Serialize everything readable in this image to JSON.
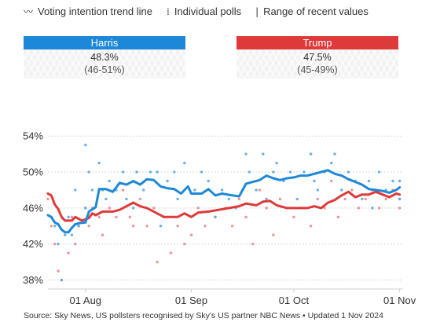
{
  "legend": {
    "trend": "Voting intention trend line",
    "polls": "Individual polls",
    "range": "Range of recent values",
    "trend_icon": "wavy-line-icon",
    "polls_icon": "dots-icon",
    "range_icon": "bar-icon"
  },
  "candidates": [
    {
      "name": "Harris",
      "pct": "48.3%",
      "range": "(46-51%)",
      "color": "#1e88d8"
    },
    {
      "name": "Trump",
      "pct": "47.5%",
      "range": "(45-49%)",
      "color": "#de3a3a"
    }
  ],
  "source": "Source: Sky News, US pollsters recognised by Sky's US partner NBC News • Updated 1 Nov 2024",
  "chart_data": {
    "type": "line",
    "x_start": "2024-07-21",
    "x_end": "2024-11-02",
    "x_ticks": [
      {
        "label": "01 Aug",
        "date": "2024-08-01"
      },
      {
        "label": "01 Sep",
        "date": "2024-09-01"
      },
      {
        "label": "01 Oct",
        "date": "2024-10-01"
      },
      {
        "label": "01 Nov",
        "date": "2024-11-01"
      }
    ],
    "y_ticks": [
      "54%",
      "50%",
      "46%",
      "42%",
      "38%"
    ],
    "y_tick_values": [
      54,
      50,
      46,
      42,
      38
    ],
    "ylim": [
      37,
      55.5
    ],
    "series": [
      {
        "name": "Harris",
        "color": "#1e88d8",
        "points": [
          [
            "2024-07-21",
            45.2
          ],
          [
            "2024-07-22",
            45.0
          ],
          [
            "2024-07-23",
            44.4
          ],
          [
            "2024-07-24",
            44.2
          ],
          [
            "2024-07-25",
            43.6
          ],
          [
            "2024-07-26",
            43.3
          ],
          [
            "2024-07-27",
            43.3
          ],
          [
            "2024-07-28",
            43.8
          ],
          [
            "2024-07-29",
            44.2
          ],
          [
            "2024-07-30",
            44.3
          ],
          [
            "2024-08-01",
            44.4
          ],
          [
            "2024-08-02",
            45.6
          ],
          [
            "2024-08-04",
            46.1
          ],
          [
            "2024-08-05",
            48.1
          ],
          [
            "2024-08-07",
            48.1
          ],
          [
            "2024-08-09",
            47.8
          ],
          [
            "2024-08-11",
            48.8
          ],
          [
            "2024-08-13",
            48.6
          ],
          [
            "2024-08-15",
            49.0
          ],
          [
            "2024-08-17",
            48.6
          ],
          [
            "2024-08-19",
            49.2
          ],
          [
            "2024-08-21",
            49.1
          ],
          [
            "2024-08-23",
            48.4
          ],
          [
            "2024-08-25",
            48.2
          ],
          [
            "2024-08-27",
            48.1
          ],
          [
            "2024-08-29",
            47.6
          ],
          [
            "2024-08-31",
            48.4
          ],
          [
            "2024-09-01",
            47.6
          ],
          [
            "2024-09-04",
            47.6
          ],
          [
            "2024-09-06",
            48.1
          ],
          [
            "2024-09-08",
            47.4
          ],
          [
            "2024-09-10",
            47.6
          ],
          [
            "2024-09-13",
            47.4
          ],
          [
            "2024-09-15",
            47.3
          ],
          [
            "2024-09-17",
            48.7
          ],
          [
            "2024-09-19",
            48.9
          ],
          [
            "2024-09-21",
            49.1
          ],
          [
            "2024-09-23",
            49.6
          ],
          [
            "2024-09-25",
            49.3
          ],
          [
            "2024-09-27",
            49.1
          ],
          [
            "2024-09-29",
            49.3
          ],
          [
            "2024-10-01",
            49.4
          ],
          [
            "2024-10-03",
            49.6
          ],
          [
            "2024-10-05",
            49.6
          ],
          [
            "2024-10-07",
            49.8
          ],
          [
            "2024-10-09",
            50.0
          ],
          [
            "2024-10-11",
            50.2
          ],
          [
            "2024-10-13",
            49.8
          ],
          [
            "2024-10-15",
            49.6
          ],
          [
            "2024-10-17",
            49.2
          ],
          [
            "2024-10-19",
            48.9
          ],
          [
            "2024-10-21",
            48.6
          ],
          [
            "2024-10-23",
            48.1
          ],
          [
            "2024-10-25",
            48.0
          ],
          [
            "2024-10-27",
            47.9
          ],
          [
            "2024-10-29",
            47.7
          ],
          [
            "2024-10-31",
            48.0
          ],
          [
            "2024-11-01",
            48.3
          ]
        ]
      },
      {
        "name": "Trump",
        "color": "#de3a3a",
        "points": [
          [
            "2024-07-21",
            47.6
          ],
          [
            "2024-07-22",
            47.4
          ],
          [
            "2024-07-23",
            46.4
          ],
          [
            "2024-07-24",
            45.9
          ],
          [
            "2024-07-25",
            45.0
          ],
          [
            "2024-07-26",
            44.6
          ],
          [
            "2024-07-28",
            44.6
          ],
          [
            "2024-07-29",
            45.0
          ],
          [
            "2024-07-31",
            44.6
          ],
          [
            "2024-08-02",
            44.9
          ],
          [
            "2024-08-03",
            45.4
          ],
          [
            "2024-08-04",
            45.2
          ],
          [
            "2024-08-06",
            45.6
          ],
          [
            "2024-08-09",
            45.6
          ],
          [
            "2024-08-11",
            45.8
          ],
          [
            "2024-08-13",
            46.2
          ],
          [
            "2024-08-15",
            46.6
          ],
          [
            "2024-08-17",
            46.2
          ],
          [
            "2024-08-19",
            46.0
          ],
          [
            "2024-08-21",
            45.6
          ],
          [
            "2024-08-24",
            45.0
          ],
          [
            "2024-08-28",
            45.0
          ],
          [
            "2024-08-30",
            45.4
          ],
          [
            "2024-09-01",
            45.0
          ],
          [
            "2024-09-03",
            45.5
          ],
          [
            "2024-09-06",
            45.6
          ],
          [
            "2024-09-09",
            45.8
          ],
          [
            "2024-09-12",
            46.0
          ],
          [
            "2024-09-15",
            46.2
          ],
          [
            "2024-09-17",
            46.5
          ],
          [
            "2024-09-20",
            46.3
          ],
          [
            "2024-09-22",
            46.7
          ],
          [
            "2024-09-24",
            46.8
          ],
          [
            "2024-09-26",
            46.3
          ],
          [
            "2024-09-29",
            46.0
          ],
          [
            "2024-10-02",
            46.0
          ],
          [
            "2024-10-05",
            46.0
          ],
          [
            "2024-10-07",
            46.2
          ],
          [
            "2024-10-09",
            46.0
          ],
          [
            "2024-10-11",
            46.6
          ],
          [
            "2024-10-13",
            46.9
          ],
          [
            "2024-10-15",
            47.4
          ],
          [
            "2024-10-17",
            47.8
          ],
          [
            "2024-10-19",
            47.2
          ],
          [
            "2024-10-21",
            47.5
          ],
          [
            "2024-10-23",
            47.5
          ],
          [
            "2024-10-25",
            47.8
          ],
          [
            "2024-10-27",
            47.5
          ],
          [
            "2024-10-29",
            47.2
          ],
          [
            "2024-10-31",
            47.6
          ],
          [
            "2024-11-01",
            47.5
          ]
        ]
      }
    ],
    "polls": [
      {
        "series": "Harris",
        "color": "#5aa7e6",
        "points": [
          [
            "2024-07-22",
            45.0
          ],
          [
            "2024-07-23",
            44.0
          ],
          [
            "2024-07-24",
            42.0
          ],
          [
            "2024-07-25",
            38.0
          ],
          [
            "2024-07-26",
            43.0
          ],
          [
            "2024-07-27",
            45.0
          ],
          [
            "2024-07-28",
            43.0
          ],
          [
            "2024-07-29",
            48.0
          ],
          [
            "2024-07-30",
            44.0
          ],
          [
            "2024-08-01",
            53.0
          ],
          [
            "2024-08-01",
            46.0
          ],
          [
            "2024-08-02",
            50.0
          ],
          [
            "2024-08-03",
            48.0
          ],
          [
            "2024-08-05",
            51.0
          ],
          [
            "2024-08-06",
            48.0
          ],
          [
            "2024-08-07",
            47.0
          ],
          [
            "2024-08-08",
            49.0
          ],
          [
            "2024-08-10",
            48.0
          ],
          [
            "2024-08-12",
            50.0
          ],
          [
            "2024-08-13",
            47.0
          ],
          [
            "2024-08-15",
            46.0
          ],
          [
            "2024-08-16",
            50.0
          ],
          [
            "2024-08-18",
            48.0
          ],
          [
            "2024-08-20",
            50.0
          ],
          [
            "2024-08-22",
            50.0
          ],
          [
            "2024-08-23",
            44.0
          ],
          [
            "2024-08-25",
            49.0
          ],
          [
            "2024-08-27",
            50.0
          ],
          [
            "2024-08-28",
            47.0
          ],
          [
            "2024-08-30",
            51.0
          ],
          [
            "2024-09-02",
            48.0
          ],
          [
            "2024-09-04",
            50.0
          ],
          [
            "2024-09-06",
            49.0
          ],
          [
            "2024-09-08",
            45.0
          ],
          [
            "2024-09-10",
            48.0
          ],
          [
            "2024-09-12",
            47.0
          ],
          [
            "2024-09-14",
            46.0
          ],
          [
            "2024-09-16",
            48.0
          ],
          [
            "2024-09-17",
            52.0
          ],
          [
            "2024-09-18",
            50.0
          ],
          [
            "2024-09-20",
            48.0
          ],
          [
            "2024-09-22",
            52.0
          ],
          [
            "2024-09-23",
            47.0
          ],
          [
            "2024-09-25",
            50.0
          ],
          [
            "2024-09-26",
            51.0
          ],
          [
            "2024-09-28",
            49.0
          ],
          [
            "2024-09-30",
            50.0
          ],
          [
            "2024-10-02",
            47.0
          ],
          [
            "2024-10-04",
            50.0
          ],
          [
            "2024-10-06",
            52.0
          ],
          [
            "2024-10-07",
            49.0
          ],
          [
            "2024-10-08",
            48.0
          ],
          [
            "2024-10-10",
            50.0
          ],
          [
            "2024-10-12",
            51.0
          ],
          [
            "2024-10-13",
            52.0
          ],
          [
            "2024-10-15",
            48.0
          ],
          [
            "2024-10-17",
            50.0
          ],
          [
            "2024-10-19",
            49.0
          ],
          [
            "2024-10-21",
            47.0
          ],
          [
            "2024-10-23",
            49.0
          ],
          [
            "2024-10-24",
            46.0
          ],
          [
            "2024-10-26",
            50.0
          ],
          [
            "2024-10-28",
            48.0
          ],
          [
            "2024-10-30",
            49.0
          ],
          [
            "2024-11-01",
            47.0
          ],
          [
            "2024-11-01",
            49.0
          ]
        ]
      },
      {
        "series": "Trump",
        "color": "#ec8a8a",
        "points": [
          [
            "2024-07-21",
            47.0
          ],
          [
            "2024-07-22",
            44.0
          ],
          [
            "2024-07-23",
            42.0
          ],
          [
            "2024-07-24",
            39.0
          ],
          [
            "2024-07-25",
            38.0
          ],
          [
            "2024-07-27",
            41.0
          ],
          [
            "2024-07-28",
            45.0
          ],
          [
            "2024-07-29",
            42.0
          ],
          [
            "2024-07-30",
            44.0
          ],
          [
            "2024-08-01",
            46.0
          ],
          [
            "2024-08-02",
            44.0
          ],
          [
            "2024-08-03",
            46.0
          ],
          [
            "2024-08-05",
            45.0
          ],
          [
            "2024-08-06",
            43.0
          ],
          [
            "2024-08-08",
            46.0
          ],
          [
            "2024-08-10",
            45.0
          ],
          [
            "2024-08-12",
            48.0
          ],
          [
            "2024-08-14",
            45.0
          ],
          [
            "2024-08-15",
            44.0
          ],
          [
            "2024-08-17",
            47.0
          ],
          [
            "2024-08-19",
            44.0
          ],
          [
            "2024-08-21",
            46.0
          ],
          [
            "2024-08-22",
            40.0
          ],
          [
            "2024-08-24",
            45.0
          ],
          [
            "2024-08-26",
            41.0
          ],
          [
            "2024-08-28",
            44.0
          ],
          [
            "2024-08-30",
            42.0
          ],
          [
            "2024-09-01",
            43.0
          ],
          [
            "2024-09-03",
            46.0
          ],
          [
            "2024-09-05",
            44.0
          ],
          [
            "2024-09-08",
            45.0
          ],
          [
            "2024-09-11",
            46.0
          ],
          [
            "2024-09-13",
            44.0
          ],
          [
            "2024-09-15",
            47.0
          ],
          [
            "2024-09-17",
            45.0
          ],
          [
            "2024-09-19",
            42.0
          ],
          [
            "2024-09-21",
            48.0
          ],
          [
            "2024-09-23",
            46.0
          ],
          [
            "2024-09-25",
            43.0
          ],
          [
            "2024-09-27",
            47.0
          ],
          [
            "2024-09-29",
            46.0
          ],
          [
            "2024-10-01",
            45.0
          ],
          [
            "2024-10-03",
            46.0
          ],
          [
            "2024-10-06",
            44.0
          ],
          [
            "2024-10-08",
            47.0
          ],
          [
            "2024-10-10",
            46.0
          ],
          [
            "2024-10-12",
            49.0
          ],
          [
            "2024-10-14",
            45.0
          ],
          [
            "2024-10-16",
            47.0
          ],
          [
            "2024-10-18",
            48.0
          ],
          [
            "2024-10-20",
            46.0
          ],
          [
            "2024-10-22",
            47.0
          ],
          [
            "2024-10-24",
            48.0
          ],
          [
            "2024-10-26",
            46.0
          ],
          [
            "2024-10-28",
            47.0
          ],
          [
            "2024-10-30",
            48.0
          ],
          [
            "2024-11-01",
            46.0
          ],
          [
            "2024-11-01",
            47.0
          ]
        ]
      }
    ],
    "grid": true
  }
}
